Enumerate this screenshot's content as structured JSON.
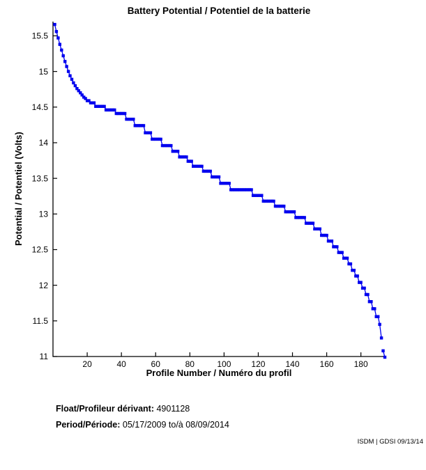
{
  "chart_data": {
    "type": "line",
    "title": "Battery Potential / Potentiel de la batterie",
    "xlabel": "Profile Number / Numéro du profil",
    "ylabel": "Potential / Potentiel (Volts)",
    "xlim": [
      0,
      194
    ],
    "ylim": [
      11,
      15.7
    ],
    "xticks": [
      20,
      40,
      60,
      80,
      100,
      120,
      140,
      160,
      180
    ],
    "yticks": [
      11,
      11.5,
      12,
      12.5,
      13,
      13.5,
      14,
      14.5,
      15,
      15.5
    ],
    "grid": false,
    "legend": "none",
    "line_color": "#0000ee",
    "marker": "square",
    "series_name": "battery-potential",
    "gap_before_profile": 193,
    "steps_profile_range_voltage": [
      [
        1,
        1,
        15.66
      ],
      [
        2,
        2,
        15.56
      ],
      [
        3,
        3,
        15.47
      ],
      [
        4,
        4,
        15.38
      ],
      [
        5,
        5,
        15.3
      ],
      [
        6,
        6,
        15.22
      ],
      [
        7,
        7,
        15.14
      ],
      [
        8,
        8,
        15.07
      ],
      [
        9,
        9,
        15.0
      ],
      [
        10,
        10,
        14.94
      ],
      [
        11,
        11,
        14.89
      ],
      [
        12,
        12,
        14.84
      ],
      [
        13,
        13,
        14.8
      ],
      [
        14,
        14,
        14.76
      ],
      [
        15,
        15,
        14.73
      ],
      [
        16,
        16,
        14.7
      ],
      [
        17,
        17,
        14.67
      ],
      [
        18,
        18,
        14.64
      ],
      [
        19,
        19,
        14.62
      ],
      [
        20,
        21,
        14.59
      ],
      [
        22,
        24,
        14.56
      ],
      [
        25,
        30,
        14.51
      ],
      [
        31,
        36,
        14.46
      ],
      [
        37,
        42,
        14.41
      ],
      [
        43,
        47,
        14.33
      ],
      [
        48,
        53,
        14.24
      ],
      [
        54,
        57,
        14.14
      ],
      [
        58,
        63,
        14.05
      ],
      [
        64,
        69,
        13.96
      ],
      [
        70,
        73,
        13.88
      ],
      [
        74,
        78,
        13.8
      ],
      [
        79,
        81,
        13.74
      ],
      [
        82,
        87,
        13.67
      ],
      [
        88,
        92,
        13.6
      ],
      [
        93,
        97,
        13.52
      ],
      [
        98,
        103,
        13.43
      ],
      [
        104,
        116,
        13.34
      ],
      [
        117,
        122,
        13.26
      ],
      [
        123,
        129,
        13.18
      ],
      [
        130,
        135,
        13.11
      ],
      [
        136,
        141,
        13.03
      ],
      [
        142,
        147,
        12.95
      ],
      [
        148,
        152,
        12.87
      ],
      [
        153,
        156,
        12.79
      ],
      [
        157,
        160,
        12.7
      ],
      [
        161,
        163,
        12.62
      ],
      [
        164,
        166,
        12.54
      ],
      [
        167,
        169,
        12.46
      ],
      [
        170,
        172,
        12.38
      ],
      [
        173,
        174,
        12.3
      ],
      [
        175,
        176,
        12.21
      ],
      [
        177,
        178,
        12.13
      ],
      [
        179,
        180,
        12.04
      ],
      [
        181,
        182,
        11.96
      ],
      [
        183,
        184,
        11.87
      ],
      [
        185,
        186,
        11.77
      ],
      [
        187,
        188,
        11.67
      ],
      [
        189,
        190,
        11.56
      ],
      [
        191,
        191,
        11.45
      ],
      [
        192,
        192,
        11.26
      ],
      [
        193,
        193,
        11.08
      ],
      [
        194,
        194,
        10.99
      ]
    ]
  },
  "footer": {
    "float_label": "Float/Profileur dérivant:",
    "float_value": "4901128",
    "period_label": "Period/Période:",
    "period_value": "05/17/2009  to/à  08/09/2014",
    "stamp": "ISDM | GDSI 09/13/14"
  }
}
